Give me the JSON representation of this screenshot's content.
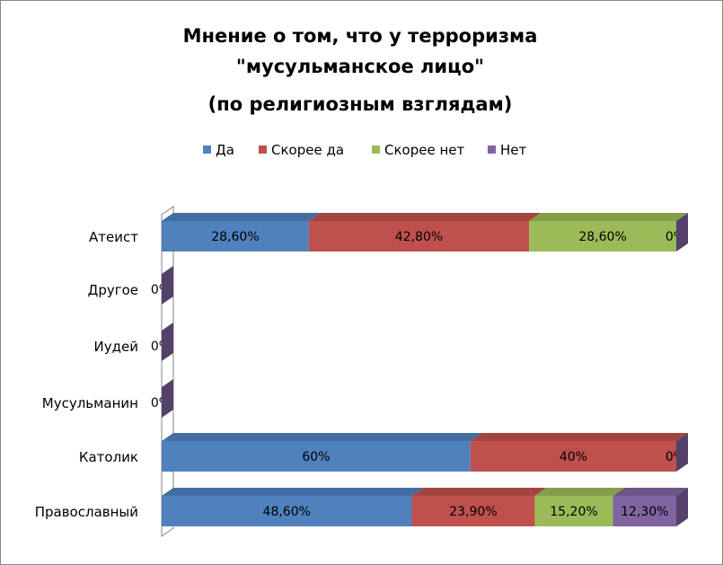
{
  "chart_data": {
    "type": "bar",
    "orientation": "horizontal",
    "stacked": "100%",
    "title": [
      "Мнение о том, что у терроризма",
      "\"мусульманское лицо\"",
      "(по религиозным взглядам)"
    ],
    "categories": [
      "Атеист",
      "Другое",
      "Иудей",
      "Мусульманин",
      "Католик",
      "Православный"
    ],
    "series": [
      {
        "name": "Да",
        "color": "#4F81BD",
        "values": [
          28.6,
          0,
          0,
          0,
          60,
          48.6
        ],
        "labels": [
          "28,60%",
          "",
          "",
          "",
          "60%",
          "48,60%"
        ]
      },
      {
        "name": "Скорее да",
        "color": "#C0504D",
        "values": [
          42.8,
          0,
          0,
          0,
          40,
          23.9
        ],
        "labels": [
          "42,80%",
          "",
          "",
          "",
          "40%",
          "23,90%"
        ]
      },
      {
        "name": "Скорее нет",
        "color": "#9BBB59",
        "values": [
          28.6,
          0,
          0,
          0,
          0,
          15.2
        ],
        "labels": [
          "28,60%",
          "",
          "",
          "",
          "",
          "15,20%"
        ]
      },
      {
        "name": "Нет",
        "color": "#8064A2",
        "values": [
          0,
          0,
          0,
          0,
          0,
          12.3
        ],
        "labels": [
          "0%",
          "0%",
          "0%",
          "0%",
          "0%",
          "12,30%"
        ]
      }
    ],
    "legend": "top",
    "grid": false
  }
}
